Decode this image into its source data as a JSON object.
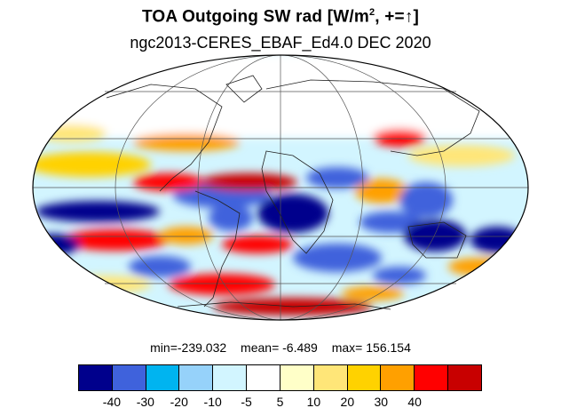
{
  "title_main": "TOA Outgoing SW rad [W/m",
  "title_sup": "2",
  "title_end": ", +=↑]",
  "subtitle": "ngc2013-CERES_EBAF_Ed4.0 DEC 2020",
  "stats": {
    "min": "min=-239.032",
    "mean": "mean=  -6.489",
    "max": "max= 156.154"
  },
  "colorbar": {
    "colors": [
      "#00008c",
      "#3f62dc",
      "#00b4f0",
      "#96d2fa",
      "#d2f5ff",
      "#ffffff",
      "#ffffc8",
      "#ffe678",
      "#ffd200",
      "#ffa000",
      "#ff0000",
      "#c80000"
    ],
    "ticks": [
      "-40",
      "-30",
      "-20",
      "-10",
      "-5",
      "5",
      "10",
      "20",
      "30",
      "40"
    ]
  },
  "chart_data": {
    "type": "heatmap",
    "projection": "mollweide",
    "title": "TOA Outgoing SW rad [W/m2, +=↑]",
    "subtitle": "ngc2013-CERES_EBAF_Ed4.0 DEC 2020",
    "min": -239.032,
    "mean": -6.489,
    "max": 156.154,
    "levels": [
      -40,
      -30,
      -20,
      -10,
      -5,
      5,
      10,
      20,
      30,
      40
    ]
  }
}
